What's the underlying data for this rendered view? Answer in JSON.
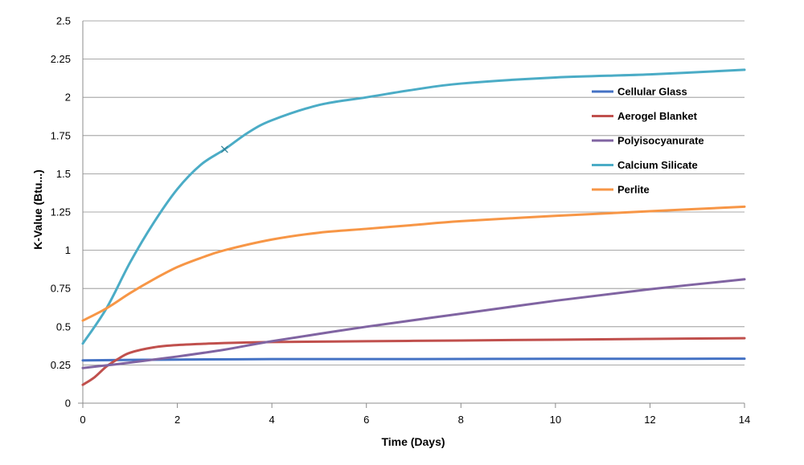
{
  "chart_data": {
    "type": "line",
    "title": "",
    "xlabel": "Time (Days)",
    "ylabel": "K-Value (Btu...)",
    "xlim": [
      0,
      14
    ],
    "ylim": [
      0,
      2.5
    ],
    "x_ticks": [
      "0",
      "2",
      "4",
      "6",
      "8",
      "10",
      "12",
      "14"
    ],
    "y_ticks": [
      "0",
      "0.25",
      "0.5",
      "0.75",
      "1",
      "1.25",
      "1.5",
      "1.75",
      "2",
      "2.25",
      "2.5"
    ],
    "grid": "horizontal",
    "legend_position": "right",
    "series": [
      {
        "name": "Cellular Glass",
        "color": "#4472c4",
        "points": [
          [
            0,
            0.28
          ],
          [
            1,
            0.283
          ],
          [
            2,
            0.285
          ],
          [
            4,
            0.288
          ],
          [
            6,
            0.288
          ],
          [
            8,
            0.289
          ],
          [
            10,
            0.29
          ],
          [
            12,
            0.29
          ],
          [
            14,
            0.291
          ]
        ]
      },
      {
        "name": "Aerogel Blanket",
        "color": "#c0504d",
        "points": [
          [
            0,
            0.12
          ],
          [
            0.25,
            0.17
          ],
          [
            0.5,
            0.24
          ],
          [
            0.75,
            0.29
          ],
          [
            1,
            0.33
          ],
          [
            1.5,
            0.365
          ],
          [
            2,
            0.38
          ],
          [
            3,
            0.393
          ],
          [
            4,
            0.4
          ],
          [
            6,
            0.405
          ],
          [
            8,
            0.41
          ],
          [
            10,
            0.415
          ],
          [
            12,
            0.42
          ],
          [
            14,
            0.425
          ]
        ]
      },
      {
        "name": "Polyisocyanurate",
        "color": "#8064a2",
        "points": [
          [
            0,
            0.23
          ],
          [
            1,
            0.265
          ],
          [
            2,
            0.305
          ],
          [
            3,
            0.35
          ],
          [
            4,
            0.405
          ],
          [
            6,
            0.5
          ],
          [
            8,
            0.585
          ],
          [
            10,
            0.67
          ],
          [
            12,
            0.745
          ],
          [
            14,
            0.81
          ]
        ]
      },
      {
        "name": "Calcium Silicate",
        "color": "#4bacc6",
        "points": [
          [
            0,
            0.39
          ],
          [
            0.5,
            0.62
          ],
          [
            1,
            0.92
          ],
          [
            1.5,
            1.18
          ],
          [
            2,
            1.4
          ],
          [
            2.5,
            1.56
          ],
          [
            3,
            1.66
          ],
          [
            3.5,
            1.77
          ],
          [
            4,
            1.85
          ],
          [
            5,
            1.95
          ],
          [
            6,
            2.0
          ],
          [
            7,
            2.05
          ],
          [
            8,
            2.09
          ],
          [
            10,
            2.13
          ],
          [
            12,
            2.15
          ],
          [
            14,
            2.18
          ]
        ]
      },
      {
        "name": "Perlite",
        "color": "#f79646",
        "points": [
          [
            0,
            0.54
          ],
          [
            0.5,
            0.62
          ],
          [
            1,
            0.72
          ],
          [
            1.5,
            0.81
          ],
          [
            2,
            0.89
          ],
          [
            2.5,
            0.95
          ],
          [
            3,
            1.0
          ],
          [
            4,
            1.07
          ],
          [
            5,
            1.115
          ],
          [
            6,
            1.14
          ],
          [
            7,
            1.165
          ],
          [
            8,
            1.19
          ],
          [
            10,
            1.225
          ],
          [
            12,
            1.255
          ],
          [
            14,
            1.285
          ]
        ]
      }
    ],
    "marker": {
      "series": "Calcium Silicate",
      "x": 3,
      "y": 1.66,
      "symbol": "x"
    }
  }
}
